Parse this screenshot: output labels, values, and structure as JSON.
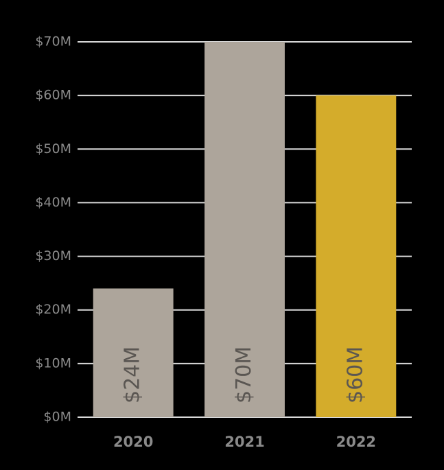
{
  "chart_data": {
    "type": "bar",
    "categories": [
      "2020",
      "2021",
      "2022"
    ],
    "values": [
      24,
      70,
      60
    ],
    "value_labels": [
      "$24M",
      "$70M",
      "$60M"
    ],
    "colors": [
      "#ada59b",
      "#ada59b",
      "#d4ac2b"
    ],
    "ylim": [
      0,
      70
    ],
    "yticks": [
      {
        "value": 0,
        "label": "$0M"
      },
      {
        "value": 10,
        "label": "$10M"
      },
      {
        "value": 20,
        "label": "$20M"
      },
      {
        "value": 30,
        "label": "$30M"
      },
      {
        "value": 40,
        "label": "$40M"
      },
      {
        "value": 50,
        "label": "$50M"
      },
      {
        "value": 60,
        "label": "$60M"
      },
      {
        "value": 70,
        "label": "$70M"
      }
    ],
    "grid": true
  }
}
